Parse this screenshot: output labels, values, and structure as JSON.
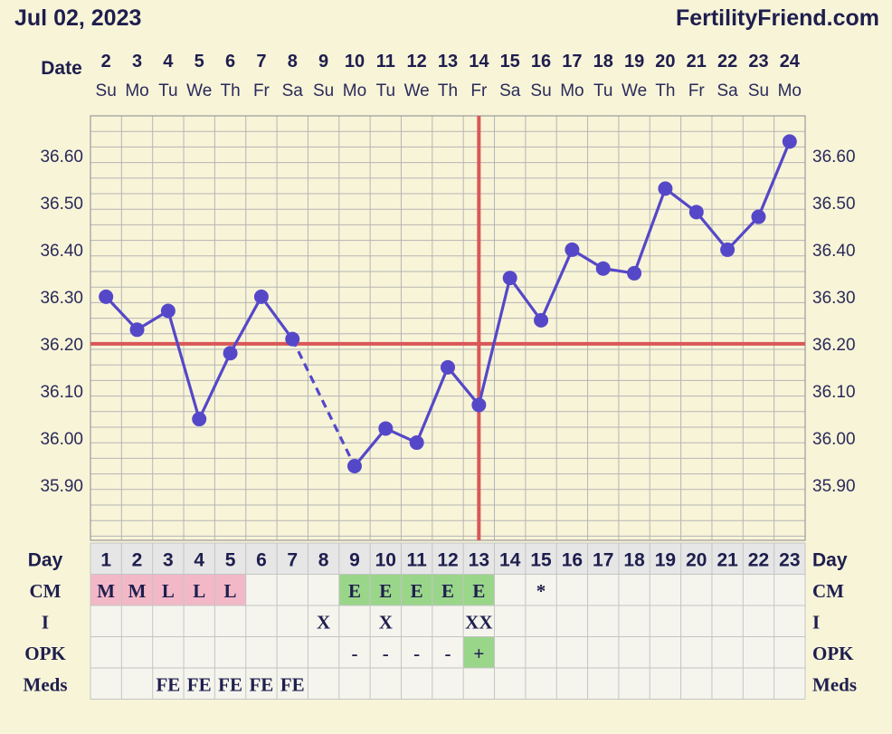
{
  "header": {
    "date": "Jul 02, 2023",
    "site": "FertilityFriend.com"
  },
  "labels": {
    "date": "Date",
    "day": "Day",
    "cm": "CM",
    "i": "I",
    "opk": "OPK",
    "meds": "Meds"
  },
  "colors": {
    "line": "#5548c8",
    "coverline": "#d95757",
    "pink": "#f2b8c8",
    "green": "#9ad68a",
    "grid": "#b5b5b5"
  },
  "chart_data": {
    "type": "line",
    "title": "",
    "xlabel": "Date",
    "ylabel": "",
    "dates": [
      "2",
      "3",
      "4",
      "5",
      "6",
      "7",
      "8",
      "9",
      "10",
      "11",
      "12",
      "13",
      "14",
      "15",
      "16",
      "17",
      "18",
      "19",
      "20",
      "21",
      "22",
      "23",
      "24"
    ],
    "weekdays": [
      "Su",
      "Mo",
      "Tu",
      "We",
      "Th",
      "Fr",
      "Sa",
      "Su",
      "Mo",
      "Tu",
      "We",
      "Th",
      "Fr",
      "Sa",
      "Su",
      "Mo",
      "Tu",
      "We",
      "Th",
      "Fr",
      "Sa",
      "Su",
      "Mo"
    ],
    "cycle_days": [
      1,
      2,
      3,
      4,
      5,
      6,
      7,
      8,
      9,
      10,
      11,
      12,
      13,
      14,
      15,
      16,
      17,
      18,
      19,
      20,
      21,
      22,
      23
    ],
    "temperatures": [
      36.3,
      36.23,
      36.27,
      36.04,
      36.18,
      36.3,
      36.21,
      null,
      35.94,
      36.02,
      35.99,
      36.15,
      36.07,
      36.34,
      36.25,
      36.4,
      36.36,
      36.35,
      36.53,
      36.48,
      36.4,
      36.47,
      36.63
    ],
    "dashed_segment": [
      7,
      9
    ],
    "y_ticks": [
      "36.60",
      "36.50",
      "36.40",
      "36.30",
      "36.20",
      "36.10",
      "36.00",
      "35.90"
    ],
    "ylim": [
      35.79,
      36.72
    ],
    "coverline": 36.2,
    "ovulation_day": 13,
    "cm": [
      "M",
      "M",
      "L",
      "L",
      "L",
      "",
      "",
      "",
      "E",
      "E",
      "E",
      "E",
      "E",
      "",
      "*",
      "",
      "",
      "",
      "",
      "",
      "",
      "",
      ""
    ],
    "intercourse": [
      "",
      "",
      "",
      "",
      "",
      "",
      "",
      "X",
      "",
      "X",
      "",
      "",
      "XX",
      "",
      "",
      "",
      "",
      "",
      "",
      "",
      "",
      "",
      ""
    ],
    "opk": [
      "",
      "",
      "",
      "",
      "",
      "",
      "",
      "",
      "-",
      "-",
      "-",
      "-",
      "+",
      "",
      "",
      "",
      "",
      "",
      "",
      "",
      "",
      "",
      ""
    ],
    "meds": [
      "",
      "",
      "FE",
      "FE",
      "FE",
      "FE",
      "FE",
      "",
      "",
      "",
      "",
      "",
      "",
      "",
      "",
      "",
      "",
      "",
      "",
      "",
      "",
      "",
      ""
    ]
  }
}
